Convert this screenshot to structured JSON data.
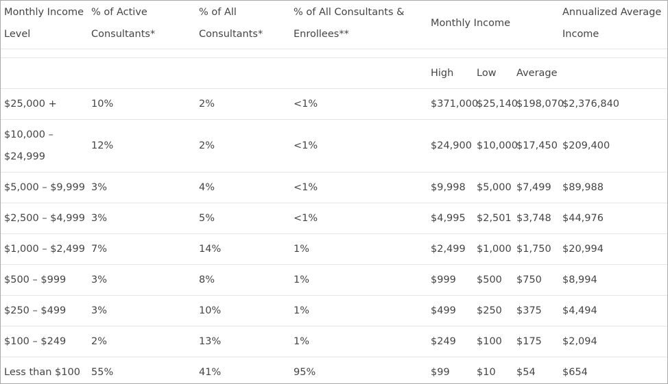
{
  "header": {
    "col_income_level_line1": "Monthly Income",
    "col_income_level_line2": "Level",
    "col_active_line1": "% of Active",
    "col_active_line2": "Consultants*",
    "col_all_line1": "% of All",
    "col_all_line2": "Consultants*",
    "col_enrollees_line1": "% of All Consultants &",
    "col_enrollees_line2": "Enrollees**",
    "col_monthly_income": "Monthly Income",
    "col_annualized_line1": "Annualized Average",
    "col_annualized_line2": "Income",
    "sub_high": "High",
    "sub_low": "Low",
    "sub_average": "Average"
  },
  "rows": [
    {
      "level": "$25,000 +",
      "level2": "",
      "active": "10%",
      "all": "2%",
      "enrollees": "<1%",
      "high": "$371,000",
      "low": "$25,140",
      "average": "$198,070",
      "annualized": "$2,376,840"
    },
    {
      "level": "$10,000 –",
      "level2": "$24,999",
      "active": "12%",
      "all": "2%",
      "enrollees": "<1%",
      "high": "$24,900",
      "low": "$10,000",
      "average": "$17,450",
      "annualized": "$209,400"
    },
    {
      "level": "$5,000 – $9,999",
      "level2": "",
      "active": "3%",
      "all": "4%",
      "enrollees": "<1%",
      "high": "$9,998",
      "low": "$5,000",
      "average": "$7,499",
      "annualized": "$89,988"
    },
    {
      "level": "$2,500 – $4,999",
      "level2": "",
      "active": "3%",
      "all": "5%",
      "enrollees": "<1%",
      "high": "$4,995",
      "low": "$2,501",
      "average": "$3,748",
      "annualized": "$44,976"
    },
    {
      "level": "$1,000 – $2,499",
      "level2": "",
      "active": "7%",
      "all": "14%",
      "enrollees": "1%",
      "high": "$2,499",
      "low": "$1,000",
      "average": "$1,750",
      "annualized": "$20,994"
    },
    {
      "level": "$500 – $999",
      "level2": "",
      "active": "3%",
      "all": "8%",
      "enrollees": "1%",
      "high": "$999",
      "low": "$500",
      "average": "$750",
      "annualized": "$8,994"
    },
    {
      "level": "$250 – $499",
      "level2": "",
      "active": "3%",
      "all": "10%",
      "enrollees": "1%",
      "high": "$499",
      "low": "$250",
      "average": "$375",
      "annualized": "$4,494"
    },
    {
      "level": "$100 – $249",
      "level2": "",
      "active": "2%",
      "all": "13%",
      "enrollees": "1%",
      "high": "$249",
      "low": "$100",
      "average": "$175",
      "annualized": "$2,094"
    },
    {
      "level": "Less than $100",
      "level2": "",
      "active": "55%",
      "all": "41%",
      "enrollees": "95%",
      "high": "$99",
      "low": "$10",
      "average": "$54",
      "annualized": "$654"
    }
  ]
}
